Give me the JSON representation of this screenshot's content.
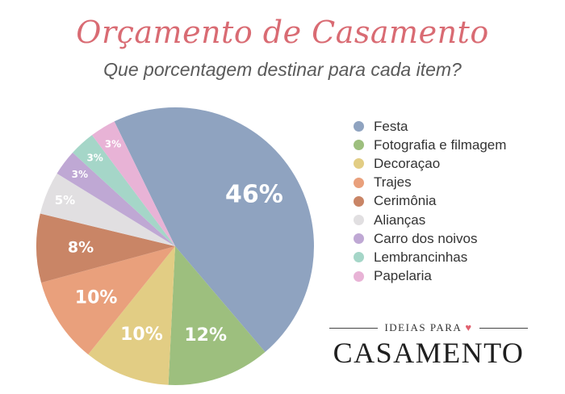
{
  "header": {
    "title": "Orçamento de Casamento",
    "subtitle": "Que porcentagem destinar para cada item?",
    "title_color": "#d96b73"
  },
  "chart_data": {
    "type": "pie",
    "title": "Orçamento de Casamento",
    "subtitle": "Que porcentagem destinar para cada item?",
    "unit": "%",
    "legend_position": "right",
    "slices": [
      {
        "label": "Festa",
        "value": 46,
        "value_label": "46%",
        "color": "#8fa3c0"
      },
      {
        "label": "Fotografia e filmagem",
        "value": 12,
        "value_label": "12%",
        "color": "#9dbf7e"
      },
      {
        "label": "Decoraçao",
        "value": 10,
        "value_label": "10%",
        "color": "#e2cd84"
      },
      {
        "label": "Trajes",
        "value": 10,
        "value_label": "10%",
        "color": "#e9a07c"
      },
      {
        "label": "Cerimônia",
        "value": 8,
        "value_label": "8%",
        "color": "#c98566"
      },
      {
        "label": "Alianças",
        "value": 5,
        "value_label": "5%",
        "color": "#e1dfe1"
      },
      {
        "label": "Carro dos noivos",
        "value": 3,
        "value_label": "3%",
        "color": "#bfa8d4"
      },
      {
        "label": "Lembrancinhas",
        "value": 3,
        "value_label": "3%",
        "color": "#a5d6c8"
      },
      {
        "label": "Papelaria",
        "value": 3,
        "value_label": "3%",
        "color": "#e8b3d6"
      }
    ]
  },
  "brand": {
    "top_text": "IDEIAS PARA",
    "heart_icon": "heart-icon",
    "heart_glyph": "♥",
    "heart_color": "#e0606e",
    "main_text": "CASAMENTO"
  }
}
